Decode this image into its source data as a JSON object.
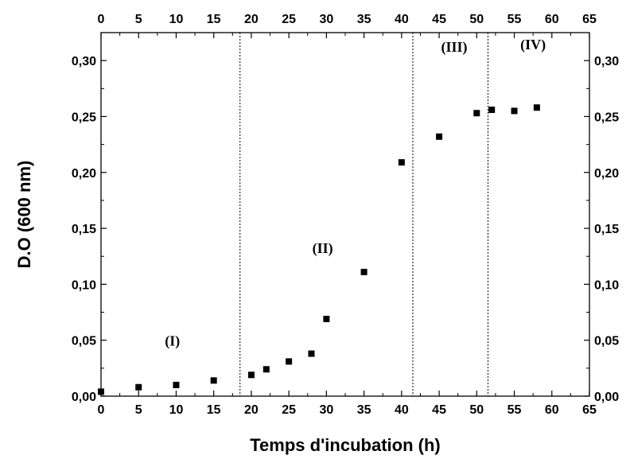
{
  "chart_data": {
    "type": "scatter",
    "xlabel": "Temps d'incubation (h)",
    "ylabel": "D.O (600 nm)",
    "xlim": [
      0,
      65
    ],
    "ylim": [
      0,
      0.325
    ],
    "x_ticks": [
      0,
      5,
      10,
      15,
      20,
      25,
      30,
      35,
      40,
      45,
      50,
      55,
      60,
      65
    ],
    "x_tick_labels": [
      "0",
      "5",
      "10",
      "15",
      "20",
      "25",
      "30",
      "35",
      "40",
      "45",
      "50",
      "55",
      "60",
      "65"
    ],
    "y_ticks": [
      0,
      0.05,
      0.1,
      0.15,
      0.2,
      0.25,
      0.3
    ],
    "y_tick_labels": [
      "0,00",
      "0,05",
      "0,10",
      "0,15",
      "0,20",
      "0,25",
      "0,30"
    ],
    "grid": false,
    "mirror_axes": true,
    "marker": "square",
    "marker_color": "#000000",
    "series": [
      {
        "x": [
          0,
          5,
          10,
          15,
          20,
          22,
          25,
          28,
          30,
          35,
          40,
          45,
          50,
          52,
          55,
          58
        ],
        "y": [
          0.004,
          0.008,
          0.01,
          0.014,
          0.019,
          0.024,
          0.031,
          0.038,
          0.069,
          0.111,
          0.209,
          0.232,
          0.253,
          0.256,
          0.255,
          0.258
        ]
      }
    ],
    "phase_dividers": [
      18.5,
      41.5,
      51.5
    ],
    "phase_labels": [
      {
        "text": "(I)",
        "x": 9.5,
        "y": 0.045
      },
      {
        "text": "(II)",
        "x": 29.5,
        "y": 0.128
      },
      {
        "text": "(III)",
        "x": 47,
        "y": 0.308
      },
      {
        "text": "(IV)",
        "x": 57.5,
        "y": 0.31
      }
    ]
  }
}
